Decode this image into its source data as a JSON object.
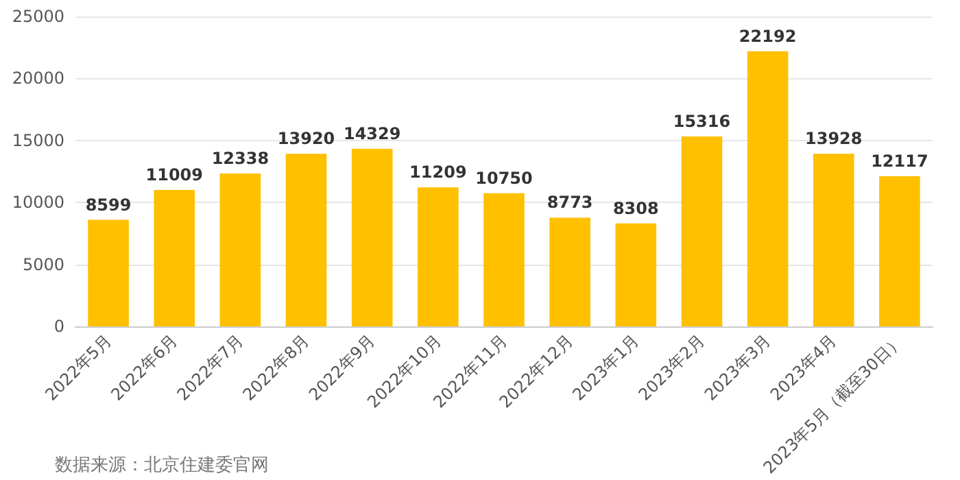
{
  "chart_data": {
    "type": "bar",
    "categories": [
      "2022年5月",
      "2022年6月",
      "2022年7月",
      "2022年8月",
      "2022年9月",
      "2022年10月",
      "2022年11月",
      "2022年12月",
      "2023年1月",
      "2023年2月",
      "2023年3月",
      "2023年4月",
      "2023年5月（截至30日）"
    ],
    "values": [
      8599,
      11009,
      12338,
      13920,
      14329,
      11209,
      10750,
      8773,
      8308,
      15316,
      22192,
      13928,
      12117
    ],
    "color": "#ffc000",
    "ylim": [
      0,
      25000
    ],
    "yticks": [
      0,
      5000,
      10000,
      15000,
      20000,
      25000
    ],
    "grid": "y",
    "data_labels": true,
    "annotations": [
      "数据来源：北京住建委官网"
    ]
  }
}
